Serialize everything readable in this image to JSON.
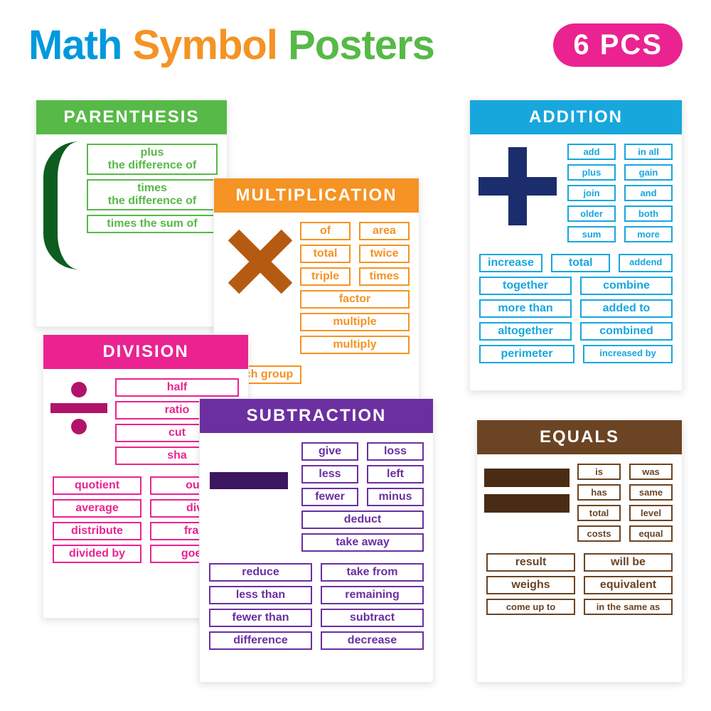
{
  "title": {
    "w1": "Math",
    "w2": "Symbol",
    "w3": "Posters"
  },
  "badge": "6 PCS",
  "colors": {
    "green": "#57b947",
    "orange": "#f59324",
    "pink": "#ea2390",
    "purple": "#6b2fa0",
    "blue": "#17a7dd",
    "brown": "#6b4423"
  },
  "parenthesis": {
    "title": "PARENTHESIS",
    "lines": [
      "plus\nthe difference of",
      "times\nthe difference of",
      "times the sum of"
    ]
  },
  "multiplication": {
    "title": "MULTIPLICATION",
    "pairs": [
      [
        "of",
        "area"
      ],
      [
        "total",
        "twice"
      ],
      [
        "triple",
        "times"
      ]
    ],
    "singles": [
      "factor",
      "multiple",
      "multiply"
    ],
    "extra": "each group"
  },
  "division": {
    "title": "DIVISION",
    "side": [
      "half",
      "ratio",
      "cut",
      "sha"
    ],
    "rows": [
      [
        "quotient",
        "out"
      ],
      [
        "average",
        "div"
      ],
      [
        "distribute",
        "frac"
      ],
      [
        "divided by",
        "goes"
      ]
    ]
  },
  "subtraction": {
    "title": "SUBTRACTION",
    "pairs": [
      [
        "give",
        "loss"
      ],
      [
        "less",
        "left"
      ],
      [
        "fewer",
        "minus"
      ]
    ],
    "singles": [
      "deduct",
      "take away"
    ],
    "rows": [
      [
        "reduce",
        "take from"
      ],
      [
        "less than",
        "remaining"
      ],
      [
        "fewer than",
        "subtract"
      ],
      [
        "difference",
        "decrease"
      ]
    ]
  },
  "addition": {
    "title": "ADDITION",
    "side": [
      [
        "add",
        "in all"
      ],
      [
        "plus",
        "gain"
      ],
      [
        "join",
        "and"
      ],
      [
        "older",
        "both"
      ],
      [
        "sum",
        "more"
      ]
    ],
    "rows": [
      [
        "increase",
        "total",
        "addend"
      ],
      [
        "together",
        "combine"
      ],
      [
        "more than",
        "added to"
      ],
      [
        "altogether",
        "combined"
      ],
      [
        "perimeter",
        "increased by"
      ]
    ]
  },
  "equals": {
    "title": "EQUALS",
    "side": [
      [
        "is",
        "was"
      ],
      [
        "has",
        "same"
      ],
      [
        "total",
        "level"
      ],
      [
        "costs",
        "equal"
      ]
    ],
    "rows": [
      [
        "result",
        "will be"
      ],
      [
        "weighs",
        "equivalent"
      ],
      [
        "come up to",
        "in the same as"
      ]
    ]
  }
}
